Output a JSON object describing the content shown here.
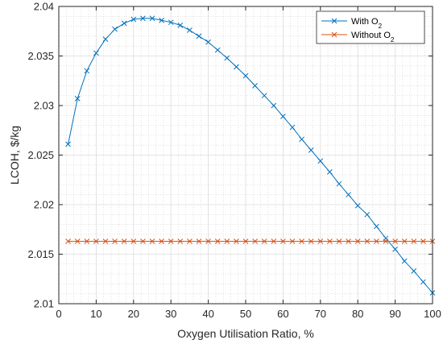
{
  "chart_data": {
    "type": "line",
    "xlabel": "Oxygen Utilisation Ratio, %",
    "ylabel": "LCOH, $/kg",
    "xlim": [
      0,
      100
    ],
    "ylim": [
      2.01,
      2.04
    ],
    "xticks": [
      0,
      10,
      20,
      30,
      40,
      50,
      60,
      70,
      80,
      90,
      100
    ],
    "xtick_labels": [
      "0",
      "10",
      "20",
      "30",
      "40",
      "50",
      "60",
      "70",
      "80",
      "90",
      "100"
    ],
    "yticks": [
      2.01,
      2.015,
      2.02,
      2.025,
      2.03,
      2.035,
      2.04
    ],
    "ytick_labels": [
      "2.01",
      "2.015",
      "2.02",
      "2.025",
      "2.03",
      "2.035",
      "2.04"
    ],
    "grid": true,
    "minor_grid": true,
    "legend_position": "top-right",
    "x": [
      2.5,
      5,
      7.5,
      10,
      12.5,
      15,
      17.5,
      20,
      22.5,
      25,
      27.5,
      30,
      32.5,
      35,
      37.5,
      40,
      42.5,
      45,
      47.5,
      50,
      52.5,
      55,
      57.5,
      60,
      62.5,
      65,
      67.5,
      70,
      72.5,
      75,
      77.5,
      80,
      82.5,
      85,
      87.5,
      90,
      92.5,
      95,
      97.5,
      100
    ],
    "series": [
      {
        "name": "With O",
        "name_subscript": "2",
        "color": "#0072BD",
        "marker": "x",
        "values": [
          2.0261,
          2.0307,
          2.0335,
          2.0353,
          2.0367,
          2.0377,
          2.0383,
          2.0387,
          2.0388,
          2.0388,
          2.0386,
          2.0384,
          2.0381,
          2.0376,
          2.037,
          2.0364,
          2.0356,
          2.0348,
          2.0339,
          2.033,
          2.032,
          2.031,
          2.03,
          2.0289,
          2.0278,
          2.0266,
          2.0255,
          2.0244,
          2.0233,
          2.0221,
          2.021,
          2.0199,
          2.019,
          2.0178,
          2.0166,
          2.0155,
          2.0143,
          2.0133,
          2.0122,
          2.0111
        ]
      },
      {
        "name": "Without O",
        "name_subscript": "2",
        "color": "#D95319",
        "marker": "x",
        "values": [
          2.0163,
          2.0163,
          2.0163,
          2.0163,
          2.0163,
          2.0163,
          2.0163,
          2.0163,
          2.0163,
          2.0163,
          2.0163,
          2.0163,
          2.0163,
          2.0163,
          2.0163,
          2.0163,
          2.0163,
          2.0163,
          2.0163,
          2.0163,
          2.0163,
          2.0163,
          2.0163,
          2.0163,
          2.0163,
          2.0163,
          2.0163,
          2.0163,
          2.0163,
          2.0163,
          2.0163,
          2.0163,
          2.0163,
          2.0163,
          2.0163,
          2.0163,
          2.0163,
          2.0163,
          2.0163,
          2.0163
        ]
      }
    ]
  }
}
